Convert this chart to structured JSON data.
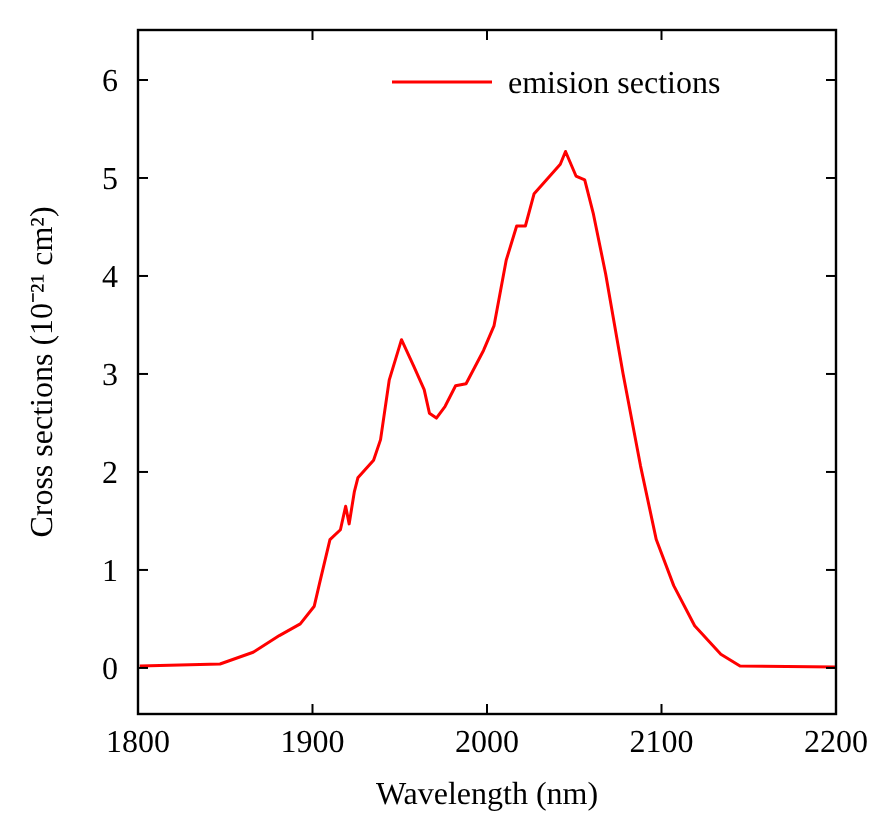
{
  "chart_data": {
    "type": "line",
    "xlabel": "Wavelength (nm)",
    "ylabel": "Cross sections (10⁻²¹ cm²)",
    "xlim": [
      1800,
      2200
    ],
    "xticks": [
      1800,
      1900,
      2000,
      2100,
      2200
    ],
    "ylim": [
      -0.47,
      6.51
    ],
    "yticks": [
      0,
      1,
      2,
      3,
      4,
      5,
      6
    ],
    "legend": "top right",
    "grid": false,
    "series": [
      {
        "name": "emision sections",
        "color": "#ff0000",
        "x": [
          1801,
          1847,
          1866,
          1881,
          1893,
          1901,
          1904,
          1910,
          1916,
          1919,
          1921,
          1924,
          1926,
          1935,
          1939,
          1944,
          1951,
          1958,
          1964,
          1967,
          1971,
          1976,
          1982,
          1988,
          1998,
          2004,
          2011,
          2017,
          2022,
          2027,
          2034,
          2042,
          2045,
          2051,
          2056,
          2061,
          2068,
          2078,
          2088,
          2097,
          2107,
          2119,
          2134,
          2145,
          2200
        ],
        "values": [
          0.02,
          0.04,
          0.16,
          0.33,
          0.45,
          0.63,
          0.86,
          1.31,
          1.41,
          1.65,
          1.47,
          1.8,
          1.94,
          2.12,
          2.33,
          2.94,
          3.35,
          3.08,
          2.84,
          2.6,
          2.55,
          2.67,
          2.88,
          2.9,
          3.24,
          3.49,
          4.16,
          4.51,
          4.51,
          4.84,
          4.98,
          5.14,
          5.27,
          5.02,
          4.98,
          4.63,
          4.02,
          3.0,
          2.06,
          1.31,
          0.84,
          0.43,
          0.14,
          0.02,
          0.01
        ]
      }
    ]
  }
}
